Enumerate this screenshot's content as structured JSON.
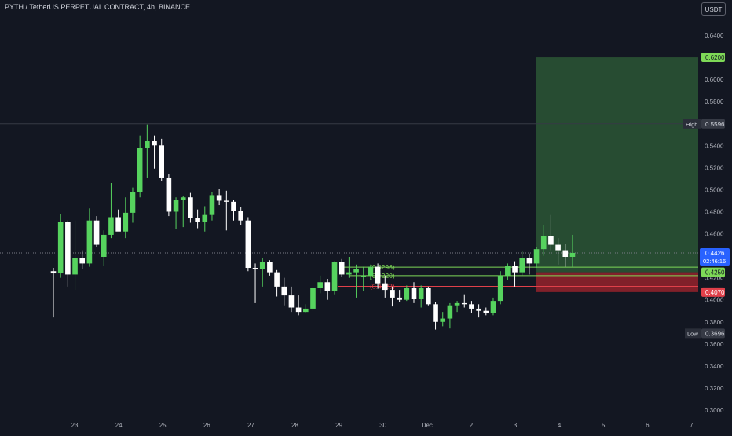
{
  "chart_title": "PYTH / TetherUS PERPETUAL CONTRACT, 4h, BINANCE",
  "currency_button": "USDT",
  "chart_data": {
    "type": "candlestick",
    "title": "PYTH / TetherUS PERPETUAL CONTRACT, 4h, BINANCE",
    "y_axis": {
      "min": 0.3,
      "max": 0.64,
      "ticks": [
        "0.6400",
        "0.6200",
        "0.6000",
        "0.5800",
        "0.5600",
        "0.5400",
        "0.5200",
        "0.5000",
        "0.4800",
        "0.4600",
        "0.4400",
        "0.4200",
        "0.4000",
        "0.3800",
        "0.3600",
        "0.3400",
        "0.3200",
        "0.3000"
      ]
    },
    "x_axis": {
      "labels": [
        "23",
        "24",
        "25",
        "26",
        "27",
        "28",
        "29",
        "30",
        "Dec",
        "2",
        "3",
        "4",
        "5",
        "6",
        "7"
      ]
    },
    "candles": [
      {
        "o": 0.426,
        "h": 0.429,
        "l": 0.384,
        "c": 0.424
      },
      {
        "o": 0.424,
        "h": 0.478,
        "l": 0.42,
        "c": 0.471
      },
      {
        "o": 0.471,
        "h": 0.472,
        "l": 0.412,
        "c": 0.423
      },
      {
        "o": 0.423,
        "h": 0.472,
        "l": 0.409,
        "c": 0.438
      },
      {
        "o": 0.438,
        "h": 0.445,
        "l": 0.428,
        "c": 0.433
      },
      {
        "o": 0.433,
        "h": 0.483,
        "l": 0.43,
        "c": 0.472
      },
      {
        "o": 0.472,
        "h": 0.476,
        "l": 0.448,
        "c": 0.45
      },
      {
        "o": 0.439,
        "h": 0.463,
        "l": 0.431,
        "c": 0.459
      },
      {
        "o": 0.459,
        "h": 0.506,
        "l": 0.456,
        "c": 0.475
      },
      {
        "o": 0.475,
        "h": 0.482,
        "l": 0.463,
        "c": 0.462
      },
      {
        "o": 0.462,
        "h": 0.493,
        "l": 0.456,
        "c": 0.479
      },
      {
        "o": 0.479,
        "h": 0.502,
        "l": 0.47,
        "c": 0.498
      },
      {
        "o": 0.498,
        "h": 0.549,
        "l": 0.493,
        "c": 0.538
      },
      {
        "o": 0.538,
        "h": 0.559,
        "l": 0.511,
        "c": 0.544
      },
      {
        "o": 0.544,
        "h": 0.549,
        "l": 0.519,
        "c": 0.54
      },
      {
        "o": 0.54,
        "h": 0.546,
        "l": 0.508,
        "c": 0.511
      },
      {
        "o": 0.511,
        "h": 0.514,
        "l": 0.476,
        "c": 0.48
      },
      {
        "o": 0.48,
        "h": 0.493,
        "l": 0.464,
        "c": 0.491
      },
      {
        "o": 0.491,
        "h": 0.494,
        "l": 0.466,
        "c": 0.493
      },
      {
        "o": 0.493,
        "h": 0.497,
        "l": 0.47,
        "c": 0.474
      },
      {
        "o": 0.474,
        "h": 0.482,
        "l": 0.465,
        "c": 0.471
      },
      {
        "o": 0.471,
        "h": 0.485,
        "l": 0.462,
        "c": 0.477
      },
      {
        "o": 0.477,
        "h": 0.498,
        "l": 0.472,
        "c": 0.495
      },
      {
        "o": 0.495,
        "h": 0.501,
        "l": 0.486,
        "c": 0.49
      },
      {
        "o": 0.49,
        "h": 0.499,
        "l": 0.463,
        "c": 0.489
      },
      {
        "o": 0.489,
        "h": 0.491,
        "l": 0.472,
        "c": 0.481
      },
      {
        "o": 0.481,
        "h": 0.484,
        "l": 0.468,
        "c": 0.472
      },
      {
        "o": 0.472,
        "h": 0.475,
        "l": 0.426,
        "c": 0.429
      },
      {
        "o": 0.429,
        "h": 0.433,
        "l": 0.397,
        "c": 0.428
      },
      {
        "o": 0.428,
        "h": 0.438,
        "l": 0.412,
        "c": 0.434
      },
      {
        "o": 0.434,
        "h": 0.436,
        "l": 0.422,
        "c": 0.425
      },
      {
        "o": 0.425,
        "h": 0.427,
        "l": 0.403,
        "c": 0.412
      },
      {
        "o": 0.412,
        "h": 0.42,
        "l": 0.395,
        "c": 0.404
      },
      {
        "o": 0.404,
        "h": 0.412,
        "l": 0.389,
        "c": 0.393
      },
      {
        "o": 0.393,
        "h": 0.404,
        "l": 0.386,
        "c": 0.389
      },
      {
        "o": 0.389,
        "h": 0.396,
        "l": 0.388,
        "c": 0.392
      },
      {
        "o": 0.392,
        "h": 0.412,
        "l": 0.39,
        "c": 0.411
      },
      {
        "o": 0.411,
        "h": 0.422,
        "l": 0.406,
        "c": 0.416
      },
      {
        "o": 0.416,
        "h": 0.419,
        "l": 0.4,
        "c": 0.408
      },
      {
        "o": 0.408,
        "h": 0.435,
        "l": 0.405,
        "c": 0.434
      },
      {
        "o": 0.434,
        "h": 0.437,
        "l": 0.421,
        "c": 0.423
      },
      {
        "o": 0.423,
        "h": 0.439,
        "l": 0.42,
        "c": 0.425
      },
      {
        "o": 0.425,
        "h": 0.432,
        "l": 0.402,
        "c": 0.428
      },
      {
        "o": 0.421,
        "h": 0.43,
        "l": 0.408,
        "c": 0.422
      },
      {
        "o": 0.422,
        "h": 0.432,
        "l": 0.418,
        "c": 0.43
      },
      {
        "o": 0.43,
        "h": 0.433,
        "l": 0.41,
        "c": 0.415
      },
      {
        "o": 0.415,
        "h": 0.422,
        "l": 0.402,
        "c": 0.409
      },
      {
        "o": 0.409,
        "h": 0.412,
        "l": 0.394,
        "c": 0.402
      },
      {
        "o": 0.402,
        "h": 0.409,
        "l": 0.398,
        "c": 0.4
      },
      {
        "o": 0.4,
        "h": 0.413,
        "l": 0.399,
        "c": 0.411
      },
      {
        "o": 0.411,
        "h": 0.416,
        "l": 0.397,
        "c": 0.401
      },
      {
        "o": 0.401,
        "h": 0.413,
        "l": 0.393,
        "c": 0.411
      },
      {
        "o": 0.411,
        "h": 0.412,
        "l": 0.395,
        "c": 0.396
      },
      {
        "o": 0.396,
        "h": 0.398,
        "l": 0.373,
        "c": 0.38
      },
      {
        "o": 0.38,
        "h": 0.389,
        "l": 0.376,
        "c": 0.383
      },
      {
        "o": 0.383,
        "h": 0.397,
        "l": 0.374,
        "c": 0.395
      },
      {
        "o": 0.395,
        "h": 0.399,
        "l": 0.389,
        "c": 0.397
      },
      {
        "o": 0.397,
        "h": 0.405,
        "l": 0.393,
        "c": 0.396
      },
      {
        "o": 0.396,
        "h": 0.399,
        "l": 0.388,
        "c": 0.392
      },
      {
        "o": 0.392,
        "h": 0.396,
        "l": 0.384,
        "c": 0.39
      },
      {
        "o": 0.39,
        "h": 0.393,
        "l": 0.386,
        "c": 0.388
      },
      {
        "o": 0.388,
        "h": 0.402,
        "l": 0.386,
        "c": 0.399
      },
      {
        "o": 0.399,
        "h": 0.426,
        "l": 0.396,
        "c": 0.422
      },
      {
        "o": 0.422,
        "h": 0.433,
        "l": 0.418,
        "c": 0.431
      },
      {
        "o": 0.431,
        "h": 0.435,
        "l": 0.412,
        "c": 0.425
      },
      {
        "o": 0.425,
        "h": 0.444,
        "l": 0.422,
        "c": 0.438
      },
      {
        "o": 0.438,
        "h": 0.442,
        "l": 0.423,
        "c": 0.433
      },
      {
        "o": 0.433,
        "h": 0.448,
        "l": 0.429,
        "c": 0.446
      },
      {
        "o": 0.446,
        "h": 0.468,
        "l": 0.44,
        "c": 0.458
      },
      {
        "o": 0.458,
        "h": 0.477,
        "l": 0.445,
        "c": 0.45
      },
      {
        "o": 0.45,
        "h": 0.456,
        "l": 0.432,
        "c": 0.445
      },
      {
        "o": 0.445,
        "h": 0.451,
        "l": 0.43,
        "c": 0.439
      },
      {
        "o": 0.439,
        "h": 0.459,
        "l": 0.43,
        "c": 0.4426
      }
    ],
    "position": {
      "entry": 0.425,
      "target": 0.62,
      "stop": 0.407
    },
    "levels": [
      {
        "label": "(0.4296)",
        "value": 0.4296,
        "color": "#7ed957"
      },
      {
        "label": "(0.4220)",
        "value": 0.422,
        "color": "#7ed957"
      },
      {
        "label": "(0.4123)",
        "value": 0.4123,
        "color": "#e0404a"
      }
    ],
    "high": {
      "label": "High",
      "value": "0.5596",
      "y": 0.5596
    },
    "low": {
      "label": "Low",
      "value": "0.3696",
      "y": 0.3696
    },
    "current": {
      "value": "0.4426",
      "countdown": "02:46:16",
      "y": 0.4426
    },
    "axis_badges": [
      {
        "value": "0.6200",
        "y": 0.62,
        "color": "#7ed957",
        "text_color": "#131722"
      },
      {
        "value": "0.4250",
        "y": 0.425,
        "color": "#7ed957",
        "text_color": "#131722"
      },
      {
        "value": "0.4070",
        "y": 0.407,
        "color": "#e0404a",
        "text_color": "#ffffff"
      }
    ],
    "colors": {
      "background": "#131722",
      "bull": "#56d35e",
      "bear": "#ffffff",
      "grid": "#1e222d",
      "axis_text": "#b2b5be",
      "profit_zone": "rgba(76,175,80,0.35)",
      "loss_zone": "rgba(220,40,50,0.55)",
      "current_badge": "#2962ff"
    }
  }
}
